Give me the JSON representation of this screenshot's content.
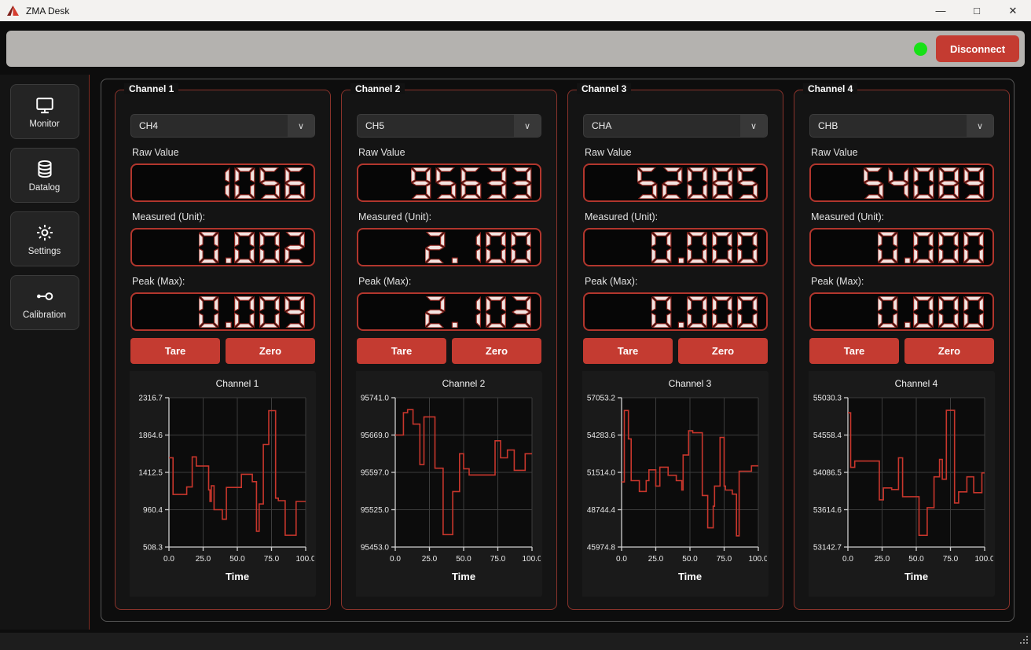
{
  "window": {
    "title": "ZMA Desk"
  },
  "icons": {
    "minimize": "—",
    "maximize": "□",
    "close": "✕",
    "chevron_down": "∨"
  },
  "toolbar": {
    "disconnect_label": "Disconnect",
    "status_color": "#17e117",
    "accent_red": "#c43b31"
  },
  "sidebar": {
    "items": [
      {
        "label": "Monitor",
        "icon": "monitor-icon"
      },
      {
        "label": "Datalog",
        "icon": "database-icon"
      },
      {
        "label": "Settings",
        "icon": "gear-icon"
      },
      {
        "label": "Calibration",
        "icon": "calibration-icon"
      }
    ]
  },
  "channels": [
    {
      "group_label": "Channel 1",
      "selected_input": "CH4",
      "raw_label": "Raw Value",
      "raw_value": "1056",
      "measured_label": "Measured (Unit):",
      "measured_value": "0.002",
      "peak_label": "Peak (Max):",
      "peak_value": "0.009",
      "tare_label": "Tare",
      "zero_label": "Zero"
    },
    {
      "group_label": "Channel 2",
      "selected_input": "CH5",
      "raw_label": "Raw Value",
      "raw_value": "95633",
      "measured_label": "Measured (Unit):",
      "measured_value": "2.100",
      "peak_label": "Peak (Max):",
      "peak_value": "2.103",
      "tare_label": "Tare",
      "zero_label": "Zero"
    },
    {
      "group_label": "Channel 3",
      "selected_input": "CHA",
      "raw_label": "Raw Value",
      "raw_value": "52085",
      "measured_label": "Measured (Unit):",
      "measured_value": "0.000",
      "peak_label": "Peak (Max):",
      "peak_value": "0.000",
      "tare_label": "Tare",
      "zero_label": "Zero"
    },
    {
      "group_label": "Channel 4",
      "selected_input": "CHB",
      "raw_label": "Raw Value",
      "raw_value": "54089",
      "measured_label": "Measured (Unit):",
      "measured_value": "0.000",
      "peak_label": "Peak (Max):",
      "peak_value": "0.000",
      "tare_label": "Tare",
      "zero_label": "Zero"
    }
  ],
  "display_style": {
    "segment_fill": "#f2e4e1",
    "segment_edge": "#8c241d",
    "border": "#b2362d"
  },
  "chart_data": [
    {
      "type": "line",
      "title": "Channel 1",
      "xlabel": "Time",
      "line_color": "#c8362c",
      "grid": true,
      "step": true,
      "legend_position": "none",
      "x_ticks": [
        "0.0",
        "25.0",
        "50.0",
        "75.0",
        "100.0"
      ],
      "y_ticks": [
        "508.3",
        "960.4",
        "1412.5",
        "1864.6",
        "2316.7"
      ],
      "xlim": [
        0,
        100
      ],
      "ylim": [
        508.3,
        2316.7
      ],
      "points": [
        [
          0,
          1590
        ],
        [
          3,
          1145
        ],
        [
          13,
          1235
        ],
        [
          17,
          1600
        ],
        [
          20,
          1490
        ],
        [
          29,
          1200
        ],
        [
          30,
          1060
        ],
        [
          31,
          1250
        ],
        [
          33,
          960
        ],
        [
          39,
          845
        ],
        [
          42,
          1230
        ],
        [
          53,
          1390
        ],
        [
          61,
          1300
        ],
        [
          64,
          700
        ],
        [
          66,
          1030
        ],
        [
          69,
          1750
        ],
        [
          73,
          2160
        ],
        [
          78,
          1100
        ],
        [
          80,
          1070
        ],
        [
          85,
          650
        ],
        [
          93,
          1060
        ],
        [
          100,
          1060
        ]
      ]
    },
    {
      "type": "line",
      "title": "Channel 2",
      "xlabel": "Time",
      "line_color": "#c8362c",
      "grid": true,
      "step": true,
      "legend_position": "none",
      "x_ticks": [
        "0.0",
        "25.0",
        "50.0",
        "75.0",
        "100.0"
      ],
      "y_ticks": [
        "95453.0",
        "95525.0",
        "95597.0",
        "95669.0",
        "95741.0"
      ],
      "xlim": [
        0,
        100
      ],
      "ylim": [
        95453.0,
        95741.0
      ],
      "points": [
        [
          0,
          95669
        ],
        [
          6,
          95712
        ],
        [
          9,
          95718
        ],
        [
          13,
          95690
        ],
        [
          18,
          95612
        ],
        [
          21,
          95704
        ],
        [
          29,
          95605
        ],
        [
          35,
          95477
        ],
        [
          42,
          95560
        ],
        [
          47,
          95633
        ],
        [
          50,
          95604
        ],
        [
          54,
          95592
        ],
        [
          73,
          95658
        ],
        [
          77,
          95625
        ],
        [
          82,
          95640
        ],
        [
          87,
          95601
        ],
        [
          95,
          95633
        ],
        [
          100,
          95633
        ]
      ]
    },
    {
      "type": "line",
      "title": "Channel 3",
      "xlabel": "Time",
      "line_color": "#c8362c",
      "grid": true,
      "step": true,
      "legend_position": "none",
      "x_ticks": [
        "0.0",
        "25.0",
        "50.0",
        "75.0",
        "100.0"
      ],
      "y_ticks": [
        "45974.8",
        "48744.4",
        "51514.0",
        "54283.6",
        "57053.2"
      ],
      "xlim": [
        0,
        100
      ],
      "ylim": [
        45974.8,
        57053.2
      ],
      "points": [
        [
          0,
          50800
        ],
        [
          2,
          56100
        ],
        [
          5,
          54000
        ],
        [
          7,
          50900
        ],
        [
          13,
          50100
        ],
        [
          18,
          50900
        ],
        [
          20,
          51700
        ],
        [
          25,
          50500
        ],
        [
          28,
          51900
        ],
        [
          34,
          51300
        ],
        [
          40,
          50900
        ],
        [
          44,
          50200
        ],
        [
          45,
          52800
        ],
        [
          49,
          54600
        ],
        [
          52,
          54450
        ],
        [
          59,
          49800
        ],
        [
          63,
          47400
        ],
        [
          67,
          49000
        ],
        [
          68,
          50500
        ],
        [
          72,
          54100
        ],
        [
          75,
          50500
        ],
        [
          76,
          50200
        ],
        [
          81,
          49900
        ],
        [
          84,
          46800
        ],
        [
          86,
          51600
        ],
        [
          95,
          52000
        ],
        [
          100,
          52000
        ]
      ]
    },
    {
      "type": "line",
      "title": "Channel 4",
      "xlabel": "Time",
      "line_color": "#c8362c",
      "grid": true,
      "step": true,
      "legend_position": "none",
      "x_ticks": [
        "0.0",
        "25.0",
        "50.0",
        "75.0",
        "100.0"
      ],
      "y_ticks": [
        "53142.7",
        "53614.6",
        "54086.5",
        "54558.4",
        "55030.3"
      ],
      "xlim": [
        0,
        100
      ],
      "ylim": [
        53142.7,
        55030.3
      ],
      "points": [
        [
          0,
          54840
        ],
        [
          2,
          54150
        ],
        [
          5,
          54230
        ],
        [
          23,
          53740
        ],
        [
          26,
          53890
        ],
        [
          32,
          53870
        ],
        [
          37,
          54270
        ],
        [
          40,
          53780
        ],
        [
          52,
          53290
        ],
        [
          58,
          53640
        ],
        [
          63,
          54030
        ],
        [
          67,
          54250
        ],
        [
          69,
          54000
        ],
        [
          72,
          54870
        ],
        [
          78,
          53700
        ],
        [
          81,
          53840
        ],
        [
          87,
          54030
        ],
        [
          92,
          53830
        ],
        [
          98,
          54080
        ],
        [
          100,
          54080
        ]
      ]
    }
  ]
}
